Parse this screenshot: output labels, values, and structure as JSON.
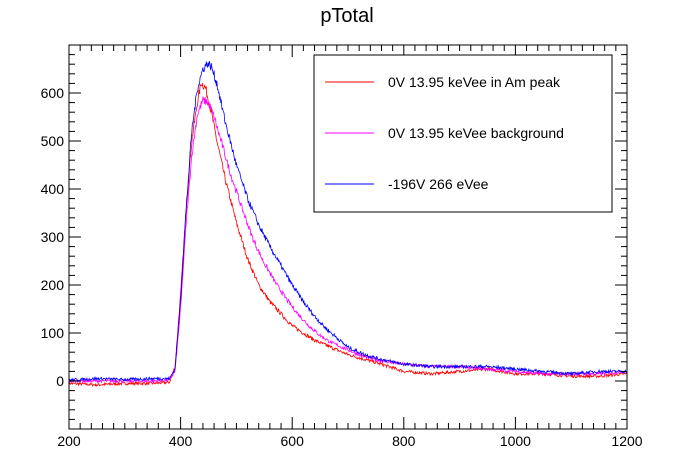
{
  "chart_data": {
    "type": "line",
    "title": "pTotal",
    "xlabel": "",
    "ylabel": "",
    "xlim": [
      200,
      1200
    ],
    "ylim": [
      -100,
      700
    ],
    "x_ticks": [
      200,
      400,
      600,
      800,
      1000,
      1200
    ],
    "y_ticks": [
      0,
      100,
      200,
      300,
      400,
      500,
      600
    ],
    "grid": false,
    "legend_position": "top-right",
    "series": [
      {
        "name": "0V 13.95 keVee in Am peak",
        "color": "#ff0000",
        "x": [
          200,
          250,
          300,
          350,
          380,
          390,
          400,
          410,
          420,
          430,
          437,
          445,
          455,
          465,
          480,
          500,
          520,
          540,
          560,
          580,
          600,
          620,
          640,
          660,
          680,
          700,
          730,
          760,
          800,
          850,
          900,
          950,
          1000,
          1050,
          1100,
          1150,
          1200
        ],
        "y": [
          -5,
          -8,
          -5,
          -5,
          -3,
          30,
          180,
          360,
          500,
          580,
          622,
          610,
          560,
          500,
          420,
          330,
          255,
          200,
          165,
          140,
          115,
          100,
          85,
          75,
          65,
          55,
          45,
          35,
          20,
          15,
          20,
          25,
          15,
          15,
          10,
          10,
          15
        ]
      },
      {
        "name": "0V 13.95 keVee background",
        "color": "#ff00ff",
        "x": [
          200,
          250,
          300,
          350,
          380,
          390,
          400,
          410,
          420,
          430,
          440,
          450,
          460,
          475,
          490,
          510,
          530,
          550,
          570,
          590,
          610,
          630,
          650,
          670,
          700,
          730,
          760,
          800,
          850,
          900,
          950,
          1000,
          1050,
          1100,
          1150,
          1200
        ],
        "y": [
          0,
          0,
          0,
          0,
          2,
          20,
          150,
          330,
          470,
          555,
          585,
          580,
          550,
          490,
          430,
          360,
          295,
          245,
          205,
          170,
          140,
          115,
          95,
          80,
          65,
          50,
          42,
          35,
          30,
          30,
          25,
          20,
          15,
          15,
          15,
          20
        ]
      },
      {
        "name": "-196V 266 eVee",
        "color": "#0000ff",
        "x": [
          200,
          250,
          300,
          350,
          380,
          390,
          400,
          410,
          420,
          430,
          440,
          448,
          455,
          465,
          480,
          500,
          520,
          540,
          560,
          580,
          600,
          620,
          640,
          660,
          680,
          700,
          730,
          760,
          800,
          850,
          900,
          950,
          1000,
          1050,
          1100,
          1150,
          1200
        ],
        "y": [
          2,
          5,
          3,
          5,
          5,
          25,
          170,
          360,
          520,
          610,
          650,
          662,
          655,
          620,
          540,
          450,
          380,
          325,
          280,
          240,
          200,
          165,
          135,
          110,
          90,
          70,
          55,
          45,
          35,
          30,
          30,
          30,
          25,
          20,
          15,
          20,
          20
        ]
      }
    ]
  }
}
